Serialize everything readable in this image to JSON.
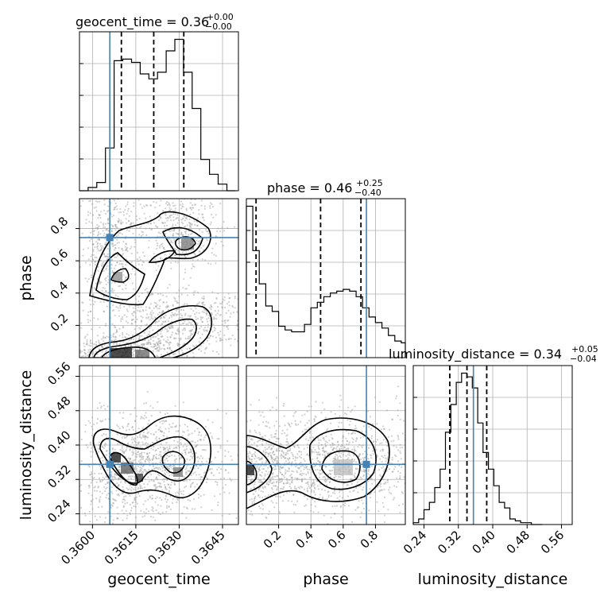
{
  "chart_data": {
    "type": "scatter",
    "variables": [
      "geocent_time",
      "phase",
      "luminosity_distance"
    ],
    "truths": {
      "geocent_time": 0.3606,
      "phase": 0.744,
      "luminosity_distance": 0.355
    },
    "titles": [
      {
        "var": "geocent_time",
        "text": "geocent_time = 0.36",
        "upper": "+0.00",
        "lower": "−0.00"
      },
      {
        "var": "phase",
        "text": "phase = 0.46",
        "upper": "+0.25",
        "lower": "−0.40"
      },
      {
        "var": "luminosity_distance",
        "text": "luminosity_distance = 0.34",
        "upper": "+0.05",
        "lower": "−0.04"
      }
    ],
    "axes": {
      "geocent_time": {
        "range": [
          0.35955,
          0.36505
        ],
        "ticks": [
          "0.3600",
          "0.3615",
          "0.3630",
          "0.3645"
        ],
        "tick_values": [
          0.36,
          0.3615,
          0.363,
          0.3645
        ],
        "label": "geocent_time"
      },
      "phase": {
        "range": [
          0.0,
          0.985
        ],
        "ticks": [
          "0.2",
          "0.4",
          "0.6",
          "0.8"
        ],
        "tick_values": [
          0.2,
          0.4,
          0.6,
          0.8
        ],
        "label": "phase"
      },
      "luminosity_distance": {
        "range": [
          0.215,
          0.585
        ],
        "ticks": [
          "0.24",
          "0.32",
          "0.40",
          "0.48",
          "0.56"
        ],
        "tick_values": [
          0.24,
          0.32,
          0.4,
          0.48,
          0.56
        ],
        "label": "luminosity_distance"
      }
    },
    "histograms": {
      "geocent_time": {
        "edges": [
          0.35955,
          0.35985,
          0.36015,
          0.36045,
          0.36075,
          0.36105,
          0.36135,
          0.36165,
          0.36195,
          0.36225,
          0.36255,
          0.36285,
          0.36315,
          0.36345,
          0.36375,
          0.36405,
          0.36435,
          0.36465,
          0.36495
        ],
        "counts": [
          0,
          2,
          5,
          26,
          79,
          80,
          78,
          71,
          68,
          72,
          85,
          92,
          72,
          50,
          19,
          10,
          4,
          0
        ],
        "quantiles": [
          0.361,
          0.36212,
          0.36316
        ]
      },
      "phase": {
        "edges": [
          0.0,
          0.04,
          0.08,
          0.12,
          0.16,
          0.2,
          0.24,
          0.28,
          0.32,
          0.36,
          0.4,
          0.44,
          0.48,
          0.52,
          0.56,
          0.6,
          0.64,
          0.68,
          0.72,
          0.76,
          0.8,
          0.84,
          0.88,
          0.92,
          0.96,
          0.985
        ],
        "counts": [
          82,
          58,
          40,
          28,
          25,
          17,
          15,
          14,
          14,
          18,
          27,
          30,
          33,
          35,
          36,
          37,
          36,
          33,
          27,
          22,
          19,
          16,
          12,
          9,
          8
        ],
        "quantiles": [
          0.06,
          0.46,
          0.71
        ]
      },
      "luminosity_distance": {
        "edges": [
          0.215,
          0.2275,
          0.24,
          0.2525,
          0.265,
          0.2775,
          0.29,
          0.3025,
          0.315,
          0.3275,
          0.34,
          0.3525,
          0.365,
          0.3775,
          0.39,
          0.4025,
          0.415,
          0.4275,
          0.44,
          0.4525,
          0.465,
          0.4775,
          0.49,
          0.5025,
          0.515
        ],
        "counts": [
          1,
          3,
          8,
          12,
          20,
          30,
          50,
          65,
          77,
          82,
          80,
          74,
          55,
          39,
          30,
          21,
          12,
          9,
          3,
          2,
          1,
          1,
          0,
          0
        ],
        "quantiles": [
          0.3,
          0.34,
          0.386
        ]
      }
    },
    "legend": "none",
    "grid": true
  }
}
